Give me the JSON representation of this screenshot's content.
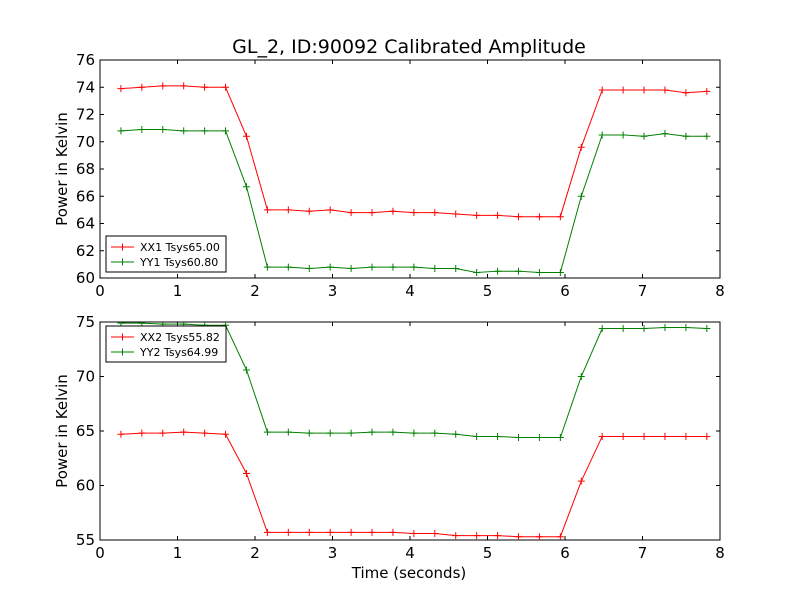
{
  "chart_data": {
    "title": "GL_2, ID:90092 Calibrated Amplitude",
    "xlabel": "Time (seconds)",
    "grid": false,
    "panels": [
      {
        "type": "line",
        "ylabel": "Power in Kelvin",
        "xlim": [
          0,
          8
        ],
        "ylim": [
          60,
          76
        ],
        "xticks": [
          "0",
          "1",
          "2",
          "3",
          "4",
          "5",
          "6",
          "7",
          "8"
        ],
        "yticks": [
          "60",
          "62",
          "64",
          "66",
          "68",
          "70",
          "72",
          "74",
          "76"
        ],
        "legend_position": "lower-left",
        "x": [
          0.27,
          0.54,
          0.81,
          1.08,
          1.35,
          1.62,
          1.89,
          2.16,
          2.43,
          2.7,
          2.97,
          3.24,
          3.51,
          3.78,
          4.05,
          4.32,
          4.59,
          4.86,
          5.13,
          5.4,
          5.67,
          5.94,
          6.21,
          6.48,
          6.75,
          7.02,
          7.29,
          7.56,
          7.83
        ],
        "series": [
          {
            "name": "XX1 Tsys65.00",
            "color": "#ff0000",
            "values": [
              73.9,
              74.0,
              74.1,
              74.1,
              74.0,
              74.0,
              70.4,
              65.0,
              65.0,
              64.9,
              65.0,
              64.8,
              64.8,
              64.9,
              64.8,
              64.8,
              64.7,
              64.6,
              64.6,
              64.5,
              64.5,
              64.5,
              69.6,
              73.8,
              73.8,
              73.8,
              73.8,
              73.6,
              73.7
            ]
          },
          {
            "name": "YY1 Tsys60.80",
            "color": "#008000",
            "values": [
              70.8,
              70.9,
              70.9,
              70.8,
              70.8,
              70.8,
              66.7,
              60.8,
              60.8,
              60.7,
              60.8,
              60.7,
              60.8,
              60.8,
              60.8,
              60.7,
              60.7,
              60.4,
              60.5,
              60.5,
              60.4,
              60.4,
              66.0,
              70.5,
              70.5,
              70.4,
              70.6,
              70.4,
              70.4
            ]
          }
        ]
      },
      {
        "type": "line",
        "ylabel": "Power in Kelvin",
        "xlim": [
          0,
          8
        ],
        "ylim": [
          55,
          75
        ],
        "xticks": [
          "0",
          "1",
          "2",
          "3",
          "4",
          "5",
          "6",
          "7",
          "8"
        ],
        "yticks": [
          "55",
          "60",
          "65",
          "70",
          "75"
        ],
        "legend_position": "top-left",
        "x": [
          0.27,
          0.54,
          0.81,
          1.08,
          1.35,
          1.62,
          1.89,
          2.16,
          2.43,
          2.7,
          2.97,
          3.24,
          3.51,
          3.78,
          4.05,
          4.32,
          4.59,
          4.86,
          5.13,
          5.4,
          5.67,
          5.94,
          6.21,
          6.48,
          6.75,
          7.02,
          7.29,
          7.56,
          7.83
        ],
        "series": [
          {
            "name": "XX2 Tsys55.82",
            "color": "#ff0000",
            "values": [
              64.7,
              64.8,
              64.8,
              64.9,
              64.8,
              64.7,
              61.1,
              55.7,
              55.7,
              55.7,
              55.7,
              55.7,
              55.7,
              55.7,
              55.6,
              55.6,
              55.4,
              55.4,
              55.4,
              55.3,
              55.3,
              55.3,
              60.4,
              64.5,
              64.5,
              64.5,
              64.5,
              64.5,
              64.5
            ]
          },
          {
            "name": "YY2 Tsys64.99",
            "color": "#008000",
            "values": [
              74.9,
              74.9,
              74.8,
              74.8,
              74.7,
              74.7,
              70.6,
              64.9,
              64.9,
              64.8,
              64.8,
              64.8,
              64.9,
              64.9,
              64.8,
              64.8,
              64.7,
              64.5,
              64.5,
              64.4,
              64.4,
              64.4,
              70.0,
              74.4,
              74.4,
              74.4,
              74.5,
              74.5,
              74.4
            ]
          }
        ]
      }
    ]
  }
}
